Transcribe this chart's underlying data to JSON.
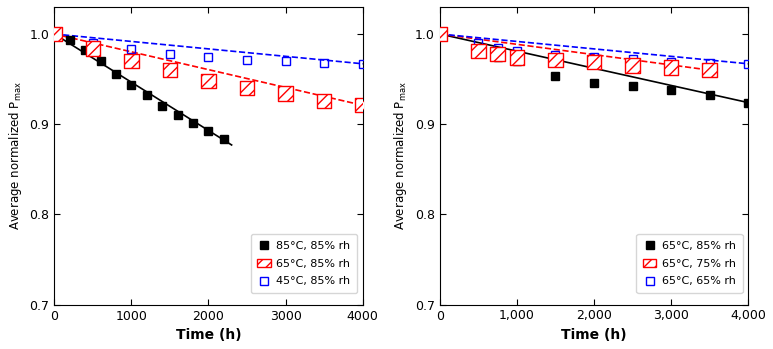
{
  "left": {
    "series": [
      {
        "label": "85°C, 85% rh",
        "color": "black",
        "marker_facecolor": "black",
        "linestyle": "-",
        "hatch": null,
        "x": [
          0,
          200,
          400,
          600,
          800,
          1000,
          1200,
          1400,
          1600,
          1800,
          2000,
          2200
        ],
        "y": [
          1.0,
          0.993,
          0.982,
          0.97,
          0.956,
          0.944,
          0.932,
          0.92,
          0.91,
          0.901,
          0.893,
          0.884
        ],
        "fit_x": [
          0,
          2300
        ],
        "fit_y": [
          1.0,
          0.877
        ]
      },
      {
        "label": "65°C, 85% rh",
        "color": "red",
        "marker_facecolor": "none",
        "linestyle": "--",
        "hatch": "///",
        "x": [
          0,
          500,
          1000,
          1500,
          2000,
          2500,
          3000,
          3500,
          4000
        ],
        "y": [
          1.0,
          0.984,
          0.97,
          0.96,
          0.948,
          0.94,
          0.934,
          0.926,
          0.921
        ],
        "fit_x": [
          0,
          4000
        ],
        "fit_y": [
          1.0,
          0.921
        ]
      },
      {
        "label": "45°C, 85% rh",
        "color": "blue",
        "marker_facecolor": "none",
        "linestyle": "--",
        "hatch": null,
        "x": [
          0,
          500,
          1000,
          1500,
          2000,
          2500,
          3000,
          3500,
          4000
        ],
        "y": [
          1.0,
          0.99,
          0.983,
          0.978,
          0.974,
          0.971,
          0.97,
          0.968,
          0.967
        ],
        "fit_x": [
          0,
          4000
        ],
        "fit_y": [
          1.0,
          0.967
        ]
      }
    ],
    "xlabel": "Time (h)",
    "ylabel": "Average normalized P$_{\\rm max}$",
    "xlim": [
      0,
      4000
    ],
    "ylim": [
      0.7,
      1.03
    ],
    "yticks": [
      0.7,
      0.8,
      0.9,
      1.0
    ],
    "xticks": [
      0,
      1000,
      2000,
      3000,
      4000
    ],
    "xtick_labels": [
      "0",
      "1000",
      "2000",
      "3000",
      "4000"
    ]
  },
  "right": {
    "series": [
      {
        "label": "65°C, 85% rh",
        "color": "black",
        "marker_facecolor": "black",
        "linestyle": "-",
        "hatch": null,
        "x": [
          0,
          500,
          750,
          1000,
          1500,
          2000,
          2500,
          3000,
          3500,
          4000
        ],
        "y": [
          1.0,
          0.982,
          0.975,
          0.97,
          0.954,
          0.946,
          0.942,
          0.938,
          0.932,
          0.924
        ],
        "fit_x": [
          0,
          4000
        ],
        "fit_y": [
          1.0,
          0.924
        ]
      },
      {
        "label": "65°C, 75% rh",
        "color": "red",
        "marker_facecolor": "none",
        "linestyle": "--",
        "hatch": "///",
        "x": [
          0,
          500,
          750,
          1000,
          1500,
          2000,
          2500,
          3000,
          3500
        ],
        "y": [
          1.0,
          0.981,
          0.978,
          0.974,
          0.971,
          0.969,
          0.965,
          0.963,
          0.96
        ],
        "fit_x": [
          0,
          3500
        ],
        "fit_y": [
          1.0,
          0.96
        ]
      },
      {
        "label": "65°C, 65% rh",
        "color": "blue",
        "marker_facecolor": "none",
        "linestyle": "--",
        "hatch": null,
        "x": [
          0,
          500,
          750,
          1000,
          1500,
          2000,
          2500,
          3000,
          3500,
          4000
        ],
        "y": [
          1.0,
          0.99,
          0.984,
          0.981,
          0.977,
          0.974,
          0.972,
          0.969,
          0.968,
          0.967
        ],
        "fit_x": [
          0,
          4000
        ],
        "fit_y": [
          1.0,
          0.967
        ]
      }
    ],
    "xlabel": "Time (h)",
    "ylabel": "Average normalized P$_{\\rm max}$",
    "xlim": [
      0,
      4000
    ],
    "ylim": [
      0.7,
      1.03
    ],
    "yticks": [
      0.7,
      0.8,
      0.9,
      1.0
    ],
    "xticks": [
      0,
      1000,
      2000,
      3000,
      4000
    ],
    "xtick_labels": [
      "0",
      "1,000",
      "2,000",
      "3,000",
      "4,000"
    ]
  }
}
